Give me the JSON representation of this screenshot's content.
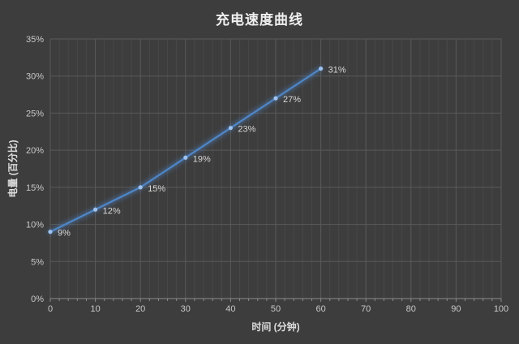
{
  "chart_data": {
    "type": "line",
    "title": "充电速度曲线",
    "xlabel": "时间 (分钟)",
    "ylabel": "电量 (百分比)",
    "x": [
      0,
      10,
      20,
      30,
      40,
      50,
      60
    ],
    "series": [
      {
        "name": "电量",
        "values": [
          9,
          12,
          15,
          19,
          23,
          27,
          31
        ],
        "data_labels": [
          "9%",
          "12%",
          "15%",
          "19%",
          "23%",
          "27%",
          "31%"
        ]
      }
    ],
    "xlim": [
      0,
      100
    ],
    "ylim": [
      0,
      35
    ],
    "x_tick_step": 10,
    "x_minor_step": 2,
    "y_tick_step": 5,
    "x_ticks": [
      "0",
      "10",
      "20",
      "30",
      "40",
      "50",
      "60",
      "70",
      "80",
      "90",
      "100"
    ],
    "y_ticks": [
      "0%",
      "5%",
      "10%",
      "15%",
      "20%",
      "25%",
      "30%",
      "35%"
    ],
    "grid": "major-and-minor",
    "legend": "none",
    "colors": {
      "background": "#3d3d3d",
      "title_text": "#efefef",
      "major_grid": "#5a5a5a",
      "minor_grid": "#484848",
      "axis_line": "#8c8c8c",
      "tick_text": "#c9c9c9",
      "line": "#4f86c6",
      "line_glow": "#4a7ebd",
      "marker": "#9ec3ef",
      "data_label_text": "#d8d8d8"
    }
  }
}
